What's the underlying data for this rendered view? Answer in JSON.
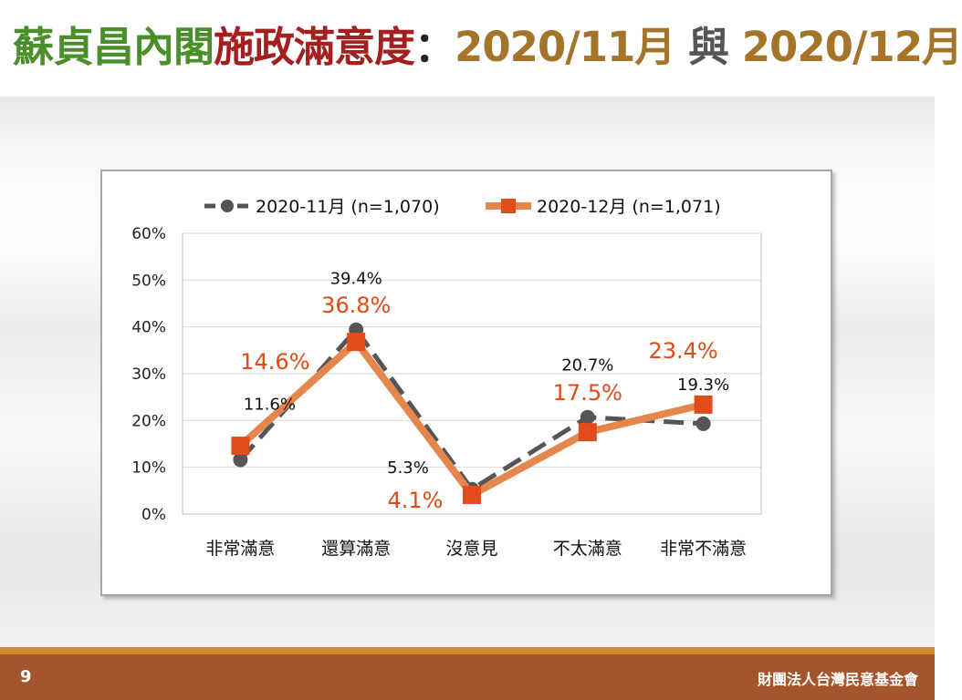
{
  "slide": {
    "title_part1": "蘇貞昌內閣",
    "title_part2": "施政滿意度",
    "title_sep": "：",
    "title_date1": "2020/11月",
    "title_and": " 與 ",
    "title_date2": "2020/12月",
    "page_number": "9",
    "organization": "財團法人台灣民意基金會"
  },
  "colors": {
    "series1": "#555555",
    "series2": "#e5874c",
    "series2_marker": "#e24b1b",
    "series2_label": "#e04a14",
    "title_green": "#4a8f2a",
    "title_red": "#a41f1f",
    "title_date": "#a4742a",
    "footer": "#a5552c"
  },
  "chart_data": {
    "type": "line",
    "categories": [
      "非常滿意",
      "還算滿意",
      "沒意見",
      "不太滿意",
      "非常不滿意"
    ],
    "series": [
      {
        "name": "2020-11月 (n=1,070)",
        "values": [
          11.6,
          39.4,
          5.3,
          20.7,
          19.3
        ],
        "labels": [
          "11.6%",
          "39.4%",
          "5.3%",
          "20.7%",
          "19.3%"
        ],
        "marker": "circle",
        "line_style": "dashed"
      },
      {
        "name": "2020-12月 (n=1,071)",
        "values": [
          14.6,
          36.8,
          4.1,
          17.5,
          23.4
        ],
        "labels": [
          "14.6%",
          "36.8%",
          "4.1%",
          "17.5%",
          "23.4%"
        ],
        "marker": "square",
        "line_style": "solid"
      }
    ],
    "ylim": [
      0,
      60
    ],
    "y_ticks": [
      "0%",
      "10%",
      "20%",
      "30%",
      "40%",
      "50%",
      "60%"
    ],
    "y_tick_values": [
      0,
      10,
      20,
      30,
      40,
      50,
      60
    ],
    "grid": true,
    "legend_position": "top"
  }
}
